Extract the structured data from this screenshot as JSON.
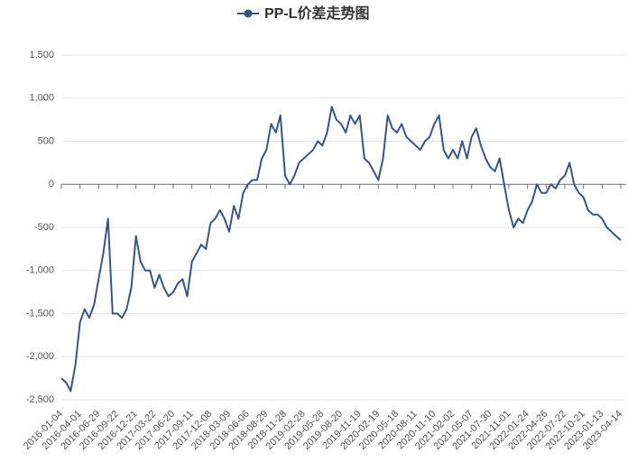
{
  "chart_data": {
    "type": "line",
    "categories": [
      "2016-01-04",
      null,
      null,
      null,
      "2016-04-01",
      null,
      null,
      null,
      "2016-06-29",
      null,
      null,
      null,
      "2016-09-22",
      null,
      null,
      null,
      "2016-12-21",
      null,
      null,
      null,
      "2017-03-22",
      null,
      null,
      null,
      "2017-06-20",
      null,
      null,
      null,
      "2017-09-11",
      null,
      null,
      null,
      "2017-12-08",
      null,
      null,
      null,
      "2018-03-09",
      null,
      null,
      null,
      "2018-06-06",
      null,
      null,
      null,
      "2018-08-29",
      null,
      null,
      null,
      "2018-11-28",
      null,
      null,
      null,
      "2019-02-28",
      null,
      null,
      null,
      "2019-05-28",
      null,
      null,
      null,
      "2019-08-20",
      null,
      null,
      null,
      "2019-11-19",
      null,
      null,
      null,
      "2020-02-19",
      null,
      null,
      null,
      "2020-05-18",
      null,
      null,
      null,
      "2020-08-11",
      null,
      null,
      null,
      "2020-11-10",
      null,
      null,
      null,
      "2021-02-02",
      null,
      null,
      null,
      "2021-05-07",
      null,
      null,
      null,
      "2021-07-30",
      null,
      null,
      null,
      "2021-11-01",
      null,
      null,
      null,
      "2022-01-24",
      null,
      null,
      null,
      "2022-04-26",
      null,
      null,
      null,
      "2022-07-22",
      null,
      null,
      null,
      "2022-10-21",
      null,
      null,
      null,
      "2023-01-13",
      null,
      null,
      null,
      "2023-04-14"
    ],
    "series": [
      {
        "name": "PP-L价差走势图",
        "color": "#34568b",
        "values": [
          -2250,
          -2300,
          -2400,
          -2100,
          -1600,
          -1450,
          -1550,
          -1400,
          -1100,
          -800,
          -400,
          -1500,
          -1500,
          -1550,
          -1450,
          -1200,
          -600,
          -900,
          -1000,
          -1000,
          -1200,
          -1050,
          -1200,
          -1300,
          -1250,
          -1150,
          -1100,
          -1300,
          -900,
          -800,
          -700,
          -750,
          -450,
          -400,
          -300,
          -400,
          -550,
          -250,
          -400,
          -100,
          0,
          50,
          50,
          300,
          400,
          700,
          600,
          800,
          100,
          0,
          100,
          250,
          300,
          350,
          400,
          500,
          450,
          600,
          900,
          750,
          700,
          600,
          800,
          700,
          800,
          300,
          250,
          150,
          50,
          300,
          800,
          650,
          600,
          700,
          550,
          500,
          450,
          400,
          500,
          550,
          700,
          800,
          400,
          300,
          400,
          300,
          500,
          300,
          550,
          650,
          450,
          300,
          200,
          150,
          300,
          0,
          -300,
          -500,
          -400,
          -450,
          -300,
          -200,
          0,
          -100,
          -100,
          0,
          -50,
          50,
          100,
          250,
          0,
          -100,
          -150,
          -300,
          -350,
          -350,
          -400,
          -500,
          -550,
          -600,
          -650
        ]
      }
    ],
    "ylim": [
      -2500,
      1500
    ],
    "yticks": [
      {
        "value": -2500,
        "label": "-2,500"
      },
      {
        "value": -2000,
        "label": "-2,000"
      },
      {
        "value": -1500,
        "label": "-1,500"
      },
      {
        "value": -1000,
        "label": "-1,000"
      },
      -500,
      0,
      500,
      {
        "value": 1000,
        "label": "1,000"
      },
      {
        "value": 1500,
        "label": "1,500"
      }
    ],
    "grid": true
  }
}
